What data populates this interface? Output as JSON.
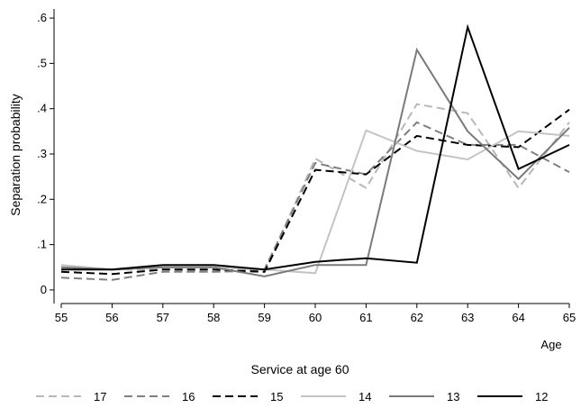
{
  "chart_data": {
    "type": "line",
    "x": [
      55,
      56,
      57,
      58,
      59,
      60,
      61,
      62,
      63,
      64,
      65
    ],
    "x_tick_labels": [
      "55",
      "56",
      "57",
      "58",
      "59",
      "60",
      "61",
      "62",
      "63",
      "64",
      "65"
    ],
    "y_tick_labels": [
      "0",
      ".1",
      ".2",
      ".3",
      ".4",
      ".5",
      ".6"
    ],
    "y_ticks": [
      0,
      0.1,
      0.2,
      0.3,
      0.4,
      0.5,
      0.6
    ],
    "xlim": [
      55,
      65
    ],
    "ylim": [
      -0.03,
      0.62
    ],
    "ylabel": "Separation probability",
    "xlabel_inner": "Age",
    "xlabel": "Service at age 60",
    "grid": false,
    "legend_position": "bottom",
    "series": [
      {
        "name": "17",
        "color": "#b8b8b8",
        "dash": "dashed",
        "values": [
          0.05,
          0.045,
          0.045,
          0.04,
          0.04,
          0.29,
          0.225,
          0.41,
          0.39,
          0.225,
          0.37
        ]
      },
      {
        "name": "16",
        "color": "#808080",
        "dash": "dashed",
        "values": [
          0.027,
          0.022,
          0.04,
          0.04,
          0.045,
          0.28,
          0.255,
          0.37,
          0.32,
          0.32,
          0.26
        ]
      },
      {
        "name": "15",
        "color": "#000000",
        "dash": "dashed",
        "values": [
          0.04,
          0.035,
          0.045,
          0.045,
          0.04,
          0.265,
          0.255,
          0.34,
          0.32,
          0.315,
          0.398
        ]
      },
      {
        "name": "14",
        "color": "#c4c4c4",
        "dash": "solid",
        "values": [
          0.055,
          0.045,
          0.05,
          0.05,
          0.045,
          0.037,
          0.352,
          0.307,
          0.288,
          0.35,
          0.34
        ]
      },
      {
        "name": "13",
        "color": "#7a7a7a",
        "dash": "solid",
        "values": [
          0.05,
          0.045,
          0.05,
          0.05,
          0.03,
          0.055,
          0.055,
          0.53,
          0.35,
          0.245,
          0.358
        ]
      },
      {
        "name": "12",
        "color": "#000000",
        "dash": "solid",
        "values": [
          0.045,
          0.045,
          0.055,
          0.055,
          0.045,
          0.062,
          0.07,
          0.06,
          0.58,
          0.267,
          0.32
        ]
      }
    ]
  }
}
